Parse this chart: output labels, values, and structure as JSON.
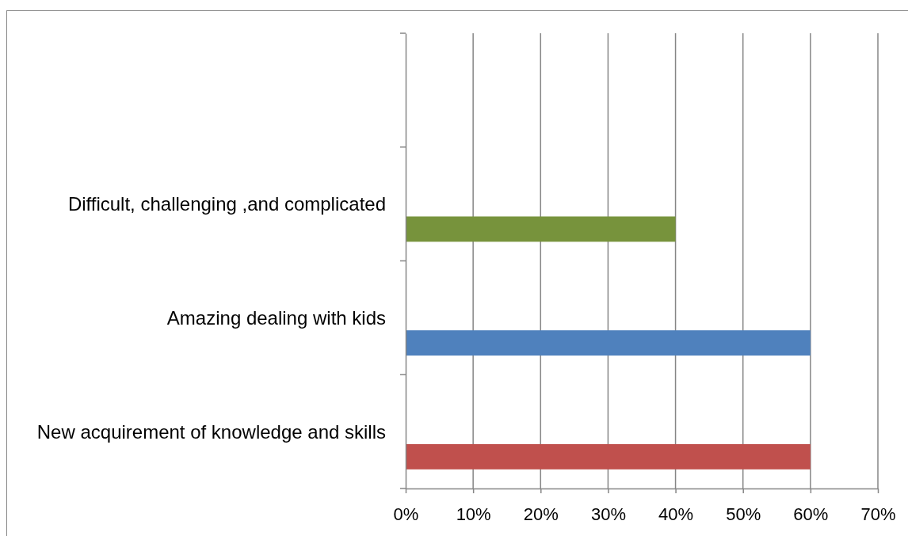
{
  "chart_data": {
    "type": "bar",
    "orientation": "horizontal",
    "categories": [
      null,
      "Difficult, challenging ,and complicated",
      "Amazing dealing with kids",
      "New acquirement of knowledge and skills"
    ],
    "values": [
      null,
      40,
      60,
      60
    ],
    "colors": [
      null,
      "#77933c",
      "#4f81bd",
      "#c0504d"
    ],
    "xlim": [
      0,
      70
    ],
    "xticks": [
      {
        "value": 0,
        "label": "0%"
      },
      {
        "value": 10,
        "label": "10%"
      },
      {
        "value": 20,
        "label": "20%"
      },
      {
        "value": 30,
        "label": "30%"
      },
      {
        "value": 40,
        "label": "40%"
      },
      {
        "value": 50,
        "label": "50%"
      },
      {
        "value": 60,
        "label": "60%"
      },
      {
        "value": 70,
        "label": "70%"
      }
    ],
    "grid": "x"
  }
}
